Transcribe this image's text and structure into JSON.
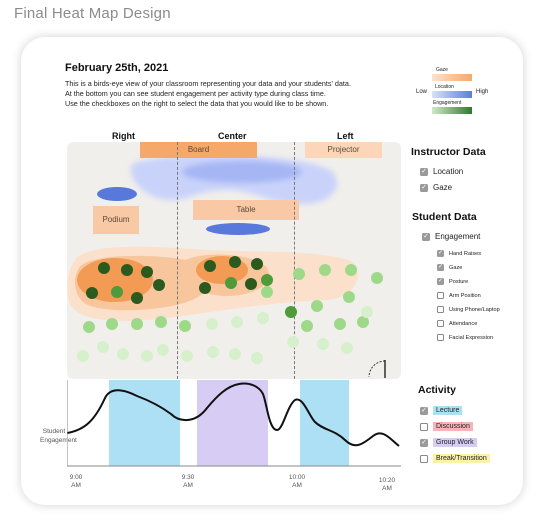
{
  "page_title": "Final Heat Map Design",
  "header": {
    "date": "February 25th, 2021",
    "description_lines": [
      "This is a birds-eye view of your classroom representing your data and your students' data.",
      "At the bottom you can see student engagement per activity type during class time.",
      "Use the checkboxes on the right to select the data that you would like to be shown."
    ]
  },
  "legend": {
    "gaze": "Gaze",
    "location": "Location",
    "engagement": "Engagement",
    "low": "Low",
    "high": "High",
    "colors": {
      "gaze": "#f5a86a",
      "location": "#5a7de0",
      "engagement": "#2e8b2e"
    }
  },
  "classroom": {
    "zones": [
      "Right",
      "Center",
      "Left"
    ],
    "board": "Board",
    "projector": "Projector",
    "podium": "Podium",
    "table": "Table"
  },
  "instructor_data": {
    "title": "Instructor Data",
    "options": [
      {
        "label": "Location",
        "checked": true
      },
      {
        "label": "Gaze",
        "checked": true
      }
    ]
  },
  "student_data": {
    "title": "Student Data",
    "engagement": {
      "label": "Engagement",
      "checked": true
    },
    "options": [
      {
        "label": "Hand Raises",
        "checked": true
      },
      {
        "label": "Gaze",
        "checked": true
      },
      {
        "label": "Posture",
        "checked": true
      },
      {
        "label": "Arm Position",
        "checked": false
      },
      {
        "label": "Using Phone/Laptop",
        "checked": false
      },
      {
        "label": "Attendance",
        "checked": false
      },
      {
        "label": "Facial Expression",
        "checked": false
      }
    ]
  },
  "activity": {
    "title": "Activity",
    "options": [
      {
        "label": "Lecture",
        "checked": true,
        "color": "#aee0f5"
      },
      {
        "label": "Discussion",
        "checked": false,
        "color": "#f7b3b8"
      },
      {
        "label": "Group Work",
        "checked": true,
        "color": "#d7ccf3"
      },
      {
        "label": "Break/Transition",
        "checked": false,
        "color": "#fbf1a8"
      }
    ]
  },
  "timeline": {
    "y_label_line1": "Student",
    "y_label_line2": "Engagement",
    "ticks": [
      {
        "time": "9:00",
        "ampm": "AM"
      },
      {
        "time": "9:30",
        "ampm": "AM"
      },
      {
        "time": "10:00",
        "ampm": "AM"
      },
      {
        "time": "10:20",
        "ampm": "AM"
      }
    ]
  }
}
